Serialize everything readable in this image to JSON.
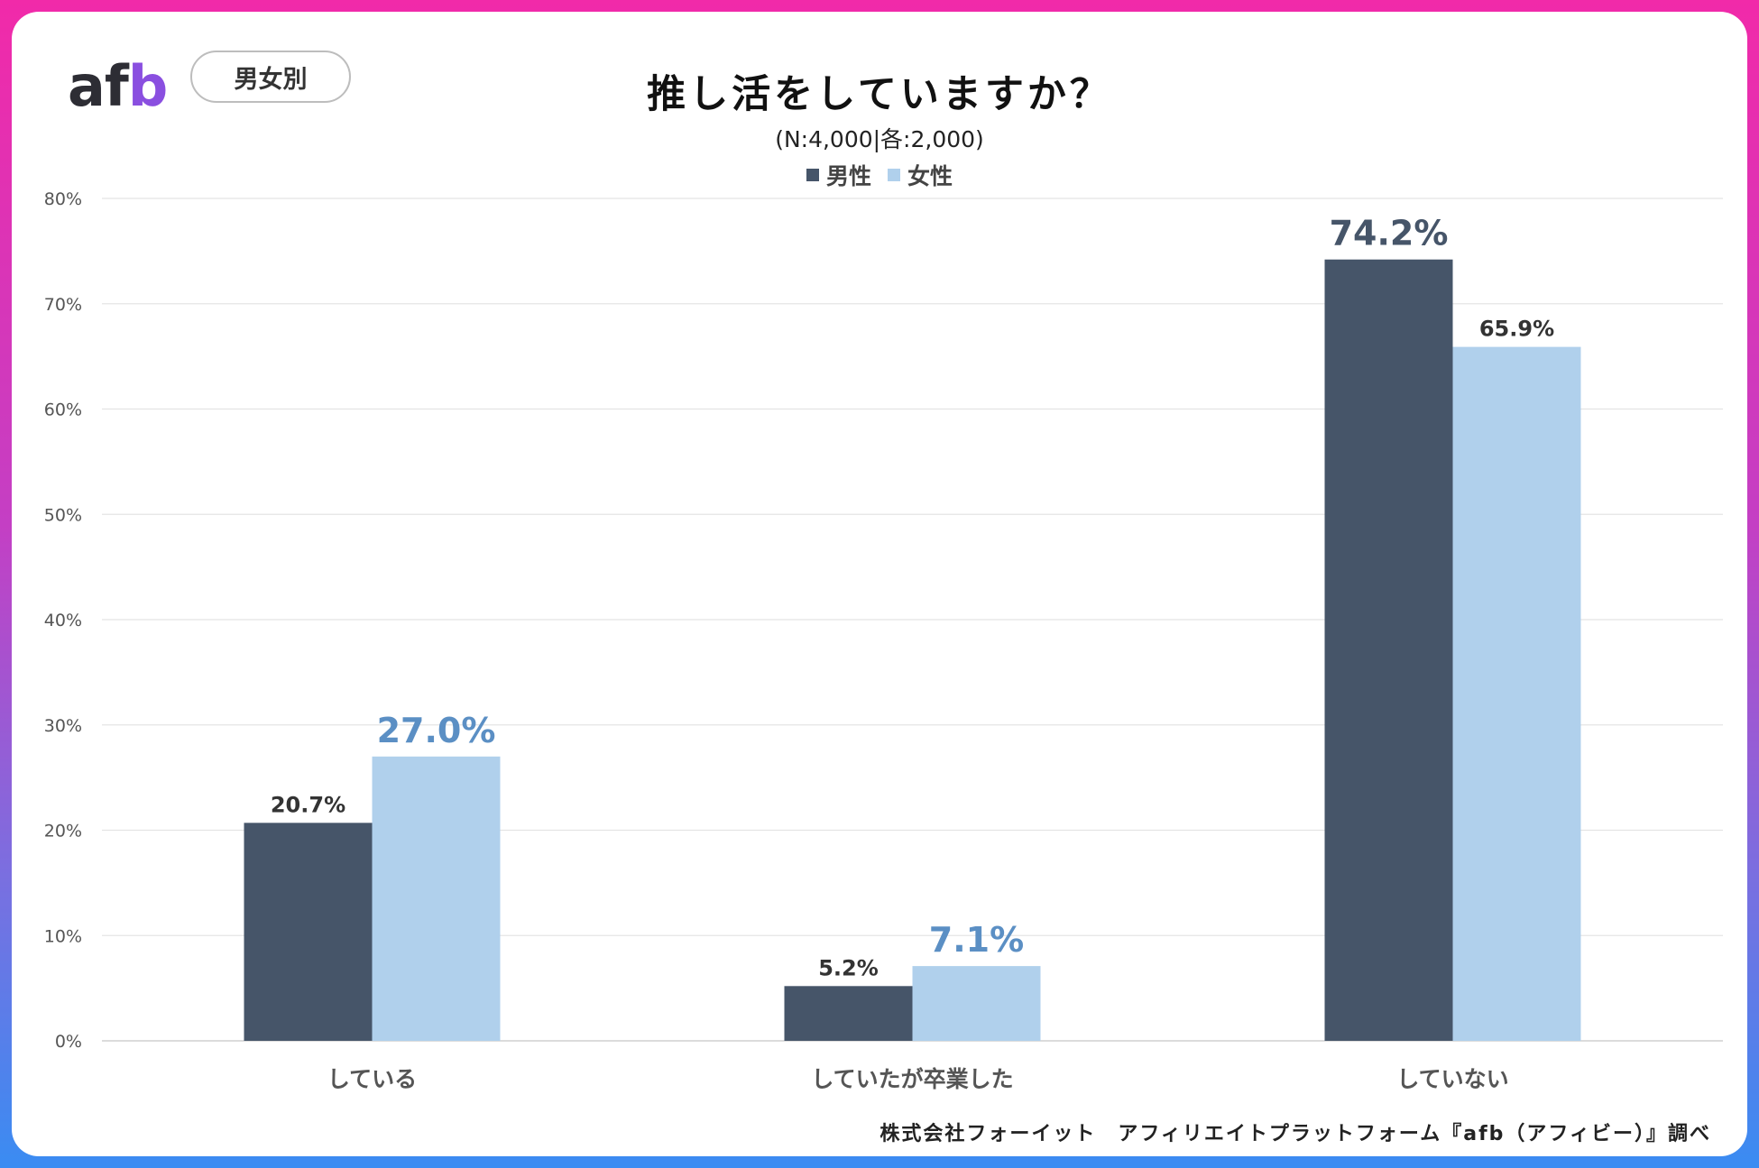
{
  "header": {
    "logo_text": "afb",
    "filter_pill": "男女別",
    "title": "推し活をしていますか？",
    "subtitle": "(N:4,000|各:2,000)"
  },
  "source_text": "株式会社フォーイット　アフィリエイトプラットフォーム『afb（アフィビー）』調べ",
  "colors": {
    "male": "#465569",
    "female": "#b0d0ec",
    "female_highlight_label": "#5b8fc4",
    "gridline": "#e4e4e4",
    "axis_text": "#555555"
  },
  "chart_data": {
    "type": "bar",
    "categories": [
      "している",
      "していたが卒業した",
      "していない"
    ],
    "series": [
      {
        "name": "男性",
        "values": [
          20.7,
          5.2,
          74.2
        ],
        "labels": [
          "20.7%",
          "5.2%",
          "74.2%"
        ]
      },
      {
        "name": "女性",
        "values": [
          27.0,
          7.1,
          65.9
        ],
        "labels": [
          "27.0%",
          "7.1%",
          "65.9%"
        ]
      }
    ],
    "highlight": [
      [
        false,
        false,
        true
      ],
      [
        true,
        true,
        false
      ]
    ],
    "ylim": [
      0,
      80
    ],
    "yticks": [
      "0%",
      "10%",
      "20%",
      "30%",
      "40%",
      "50%",
      "60%",
      "70%",
      "80%"
    ],
    "grid": true,
    "legend_position": "top-center"
  }
}
